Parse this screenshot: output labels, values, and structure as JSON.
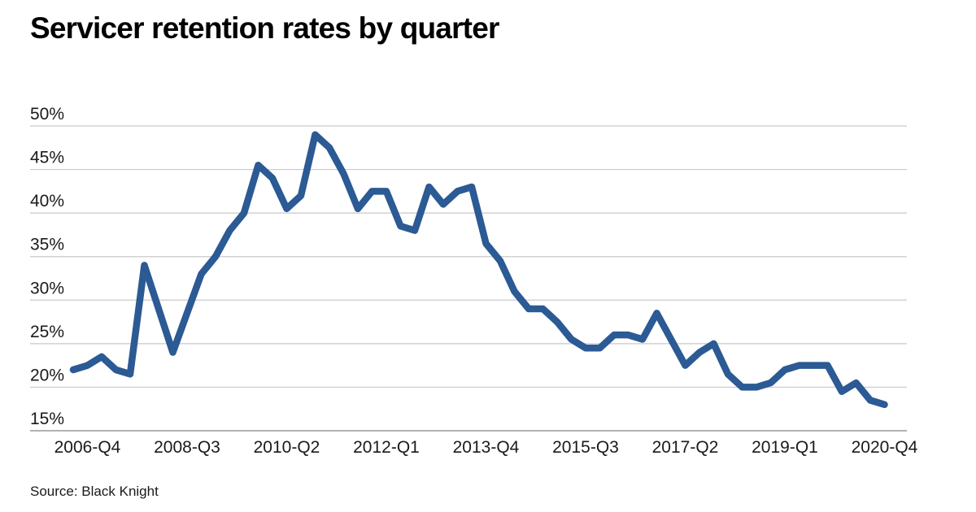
{
  "title": "Servicer retention rates by quarter",
  "footer": {
    "source_label": "Source: Black Knight"
  },
  "colors": {
    "line": "#2b5a94",
    "grid": "#c9c9c9",
    "baseline": "#999999",
    "tick_text": "#1a1a1a"
  },
  "chart_data": {
    "type": "line",
    "title": "Servicer retention rates by quarter",
    "xlabel": "",
    "ylabel": "",
    "unit": "%",
    "grid": "horizontal",
    "legend": "none",
    "ylim": [
      15,
      50
    ],
    "y_ticks": [
      15,
      20,
      25,
      30,
      35,
      40,
      45,
      50
    ],
    "x_tick_labels": [
      "2006-Q4",
      "2008-Q3",
      "2010-Q2",
      "2012-Q1",
      "2013-Q4",
      "2015-Q3",
      "2017-Q2",
      "2019-Q1",
      "2020-Q4"
    ],
    "series_name": "Servicer retention rate",
    "quarters": [
      "2006-Q3",
      "2006-Q4",
      "2007-Q1",
      "2007-Q2",
      "2007-Q3",
      "2007-Q4",
      "2008-Q1",
      "2008-Q2",
      "2008-Q3",
      "2008-Q4",
      "2009-Q1",
      "2009-Q2",
      "2009-Q3",
      "2009-Q4",
      "2010-Q1",
      "2010-Q2",
      "2010-Q3",
      "2010-Q4",
      "2011-Q1",
      "2011-Q2",
      "2011-Q3",
      "2011-Q4",
      "2012-Q1",
      "2012-Q2",
      "2012-Q3",
      "2012-Q4",
      "2013-Q1",
      "2013-Q2",
      "2013-Q3",
      "2013-Q4",
      "2014-Q1",
      "2014-Q2",
      "2014-Q3",
      "2014-Q4",
      "2015-Q1",
      "2015-Q2",
      "2015-Q3",
      "2015-Q4",
      "2016-Q1",
      "2016-Q2",
      "2016-Q3",
      "2016-Q4",
      "2017-Q1",
      "2017-Q2",
      "2017-Q3",
      "2017-Q4",
      "2018-Q1",
      "2018-Q2",
      "2018-Q3",
      "2018-Q4",
      "2019-Q1",
      "2019-Q2",
      "2019-Q3",
      "2019-Q4",
      "2020-Q1",
      "2020-Q2",
      "2020-Q3",
      "2020-Q4"
    ],
    "values": [
      22,
      22.5,
      23.5,
      22,
      21.5,
      34,
      29,
      24,
      28.5,
      33,
      35,
      38,
      40,
      45.5,
      44,
      40.5,
      42,
      49,
      47.5,
      44.5,
      40.5,
      42.5,
      42.5,
      38.5,
      38,
      43,
      41,
      42.5,
      43,
      36.5,
      34.5,
      31,
      29,
      29,
      27.5,
      25.5,
      24.5,
      24.5,
      26,
      26,
      25.5,
      28.5,
      25.5,
      22.5,
      24,
      25,
      21.5,
      20,
      20,
      20.5,
      22,
      22.5,
      22.5,
      22.5,
      19.5,
      20.5,
      18.5,
      18
    ]
  }
}
